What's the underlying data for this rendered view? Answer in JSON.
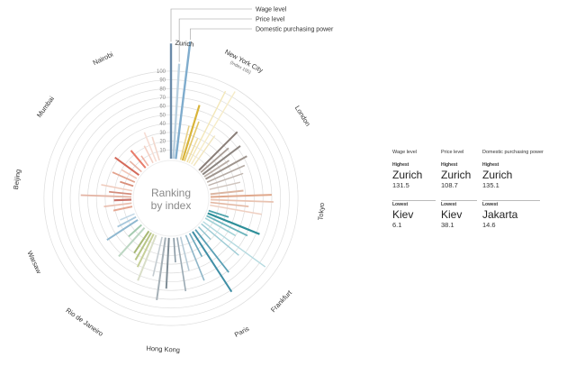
{
  "chart_data": {
    "type": "radial-bar",
    "center_label": [
      "Ranking",
      "by index"
    ],
    "axis_note": "(Index 100)",
    "radial_ticks": [
      10,
      20,
      30,
      40,
      50,
      60,
      70,
      80,
      90,
      100
    ],
    "rmax": 140,
    "series": [
      {
        "name": "Wage level",
        "color": "#6a8aa8"
      },
      {
        "name": "Price level",
        "color": "#a9c4d8"
      },
      {
        "name": "Domestic purchasing power",
        "color": "#7faccd"
      }
    ],
    "city_labels": [
      {
        "name": "Zurich",
        "angle": 5
      },
      {
        "name": "New York City",
        "angle": 28,
        "note": true
      },
      {
        "name": "London",
        "angle": 58
      },
      {
        "name": "Tokyo",
        "angle": 95
      },
      {
        "name": "Frankfurt",
        "angle": 133
      },
      {
        "name": "Paris",
        "angle": 152
      },
      {
        "name": "Hong Kong",
        "angle": 183
      },
      {
        "name": "Rio de Janeiro",
        "angle": 215
      },
      {
        "name": "Warsaw",
        "angle": 245
      },
      {
        "name": "Beijing",
        "angle": 277
      },
      {
        "name": "Mumbai",
        "angle": 306
      },
      {
        "name": "Nairobi",
        "angle": 334
      }
    ],
    "bars": [
      {
        "angle": 0,
        "value": 131.5,
        "color": "#6a8aa8",
        "width": 2.4
      },
      {
        "angle": 3.5,
        "value": 108.7,
        "color": "#b8cfdf",
        "width": 2.4
      },
      {
        "angle": 7,
        "value": 135.1,
        "color": "#7faccd",
        "width": 2.4
      },
      {
        "angle": 14,
        "value": 40,
        "color": "#e6cf85",
        "width": 1.6
      },
      {
        "angle": 17,
        "value": 66,
        "color": "#d9b43a",
        "width": 2.2
      },
      {
        "angle": 20,
        "value": 48,
        "color": "#e3c76a",
        "width": 1.6
      },
      {
        "angle": 24,
        "value": 30,
        "color": "#f0dfa6",
        "width": 1.6
      },
      {
        "angle": 27,
        "value": 92,
        "color": "#f3e7b8",
        "width": 1.4
      },
      {
        "angle": 31,
        "value": 97,
        "color": "#f6ecc8",
        "width": 1.4
      },
      {
        "angle": 35,
        "value": 42,
        "color": "#f1e5be",
        "width": 1.4
      },
      {
        "angle": 45,
        "value": 62,
        "color": "#8a7e78",
        "width": 2.0
      },
      {
        "angle": 49,
        "value": 42,
        "color": "#a99e97",
        "width": 1.8
      },
      {
        "angle": 53,
        "value": 54,
        "color": "#8c8580",
        "width": 2.0
      },
      {
        "angle": 57,
        "value": 34,
        "color": "#b8ada6",
        "width": 1.8
      },
      {
        "angle": 61,
        "value": 54,
        "color": "#9f958e",
        "width": 2.0
      },
      {
        "angle": 66,
        "value": 47,
        "color": "#b5aba4",
        "width": 1.6
      },
      {
        "angle": 71,
        "value": 42,
        "color": "#c0b5ae",
        "width": 1.4
      },
      {
        "angle": 77,
        "value": 36,
        "color": "#cfc4bd",
        "width": 1.4
      },
      {
        "angle": 84,
        "value": 38,
        "color": "#dcb6a2",
        "width": 2.0
      },
      {
        "angle": 88,
        "value": 70,
        "color": "#e0a88c",
        "width": 2.0
      },
      {
        "angle": 92,
        "value": 72,
        "color": "#e9c3b1",
        "width": 1.8
      },
      {
        "angle": 96,
        "value": 44,
        "color": "#e4b9a4",
        "width": 1.6
      },
      {
        "angle": 100,
        "value": 60,
        "color": "#efd0c2",
        "width": 1.6
      },
      {
        "angle": 108,
        "value": 24,
        "color": "#4ea3ac",
        "width": 1.8
      },
      {
        "angle": 112,
        "value": 64,
        "color": "#2e8f99",
        "width": 2.2
      },
      {
        "angle": 116,
        "value": 52,
        "color": "#6bb4bc",
        "width": 1.8
      },
      {
        "angle": 120,
        "value": 40,
        "color": "#a3d2d6",
        "width": 1.6
      },
      {
        "angle": 126,
        "value": 88,
        "color": "#b5dae0",
        "width": 1.4
      },
      {
        "angle": 130,
        "value": 56,
        "color": "#9ccbd5",
        "width": 1.4
      },
      {
        "angle": 136,
        "value": 20,
        "color": "#8fc2cc",
        "width": 1.4
      },
      {
        "angle": 142,
        "value": 62,
        "color": "#5aa0b5",
        "width": 1.8
      },
      {
        "angle": 147,
        "value": 82,
        "color": "#3f8ea5",
        "width": 2.0
      },
      {
        "angle": 152,
        "value": 30,
        "color": "#6aa7bb",
        "width": 1.6
      },
      {
        "angle": 158,
        "value": 56,
        "color": "#8fb6c8",
        "width": 1.6
      },
      {
        "angle": 166,
        "value": 40,
        "color": "#b7cbd7",
        "width": 1.6
      },
      {
        "angle": 171,
        "value": 62,
        "color": "#9aa9b3",
        "width": 1.6
      },
      {
        "angle": 176,
        "value": 28,
        "color": "#8a9aa5",
        "width": 1.6
      },
      {
        "angle": 183,
        "value": 58,
        "color": "#7f8d96",
        "width": 2.0
      },
      {
        "angle": 188,
        "value": 72,
        "color": "#a5b0b7",
        "width": 2.0
      },
      {
        "angle": 193,
        "value": 46,
        "color": "#c4ccd1",
        "width": 1.6
      },
      {
        "angle": 202,
        "value": 56,
        "color": "#d9dec8",
        "width": 2.0
      },
      {
        "angle": 206,
        "value": 42,
        "color": "#c7d09a",
        "width": 2.0
      },
      {
        "angle": 210,
        "value": 36,
        "color": "#b7c586",
        "width": 2.0
      },
      {
        "angle": 214,
        "value": 30,
        "color": "#a7b873",
        "width": 2.0
      },
      {
        "angle": 222,
        "value": 44,
        "color": "#bcd6c2",
        "width": 2.0
      },
      {
        "angle": 228,
        "value": 20,
        "color": "#a4cbb0",
        "width": 2.0
      },
      {
        "angle": 237,
        "value": 42,
        "color": "#8fb8d0",
        "width": 2.0
      },
      {
        "angle": 242,
        "value": 24,
        "color": "#a8c8dc",
        "width": 1.8
      },
      {
        "angle": 247,
        "value": 18,
        "color": "#c3d8e6",
        "width": 1.6
      },
      {
        "angle": 258,
        "value": 22,
        "color": "#e5a792",
        "width": 2.0
      },
      {
        "angle": 263,
        "value": 32,
        "color": "#eac0b1",
        "width": 1.8
      },
      {
        "angle": 268,
        "value": 20,
        "color": "#c9736a",
        "width": 2.2
      },
      {
        "angle": 272,
        "value": 58,
        "color": "#e4b4a4",
        "width": 1.8
      },
      {
        "angle": 276,
        "value": 26,
        "color": "#d48d7c",
        "width": 1.8
      },
      {
        "angle": 281,
        "value": 36,
        "color": "#f0cdbf",
        "width": 1.6
      },
      {
        "angle": 288,
        "value": 16,
        "color": "#d98f7a",
        "width": 1.8
      },
      {
        "angle": 294,
        "value": 28,
        "color": "#e3a48f",
        "width": 1.8
      },
      {
        "angle": 300,
        "value": 20,
        "color": "#f2c7b8",
        "width": 1.6
      },
      {
        "angle": 306,
        "value": 34,
        "color": "#d46a5a",
        "width": 2.0
      },
      {
        "angle": 312,
        "value": 18,
        "color": "#e8b3a4",
        "width": 1.6
      },
      {
        "angle": 320,
        "value": 26,
        "color": "#e87c6a",
        "width": 2.0
      },
      {
        "angle": 325,
        "value": 14,
        "color": "#f0b2a3",
        "width": 1.6
      },
      {
        "angle": 333,
        "value": 22,
        "color": "#f4d0c4",
        "width": 1.6
      },
      {
        "angle": 338,
        "value": 36,
        "color": "#f6ddd4",
        "width": 1.6
      },
      {
        "angle": 343,
        "value": 28,
        "color": "#f2d7cc",
        "width": 1.6
      }
    ]
  },
  "summary": {
    "headers": [
      "Wage level",
      "Price level",
      "Domestic purchasing power"
    ],
    "highest": {
      "kind": "Highest",
      "cells": [
        {
          "city": "Zurich",
          "value": "131.5"
        },
        {
          "city": "Zurich",
          "value": "108.7"
        },
        {
          "city": "Zurich",
          "value": "135.1"
        }
      ]
    },
    "lowest": {
      "kind": "Lowest",
      "cells": [
        {
          "city": "Kiev",
          "value": "6.1"
        },
        {
          "city": "Kiev",
          "value": "38.1"
        },
        {
          "city": "Jakarta",
          "value": "14.6"
        }
      ]
    }
  }
}
